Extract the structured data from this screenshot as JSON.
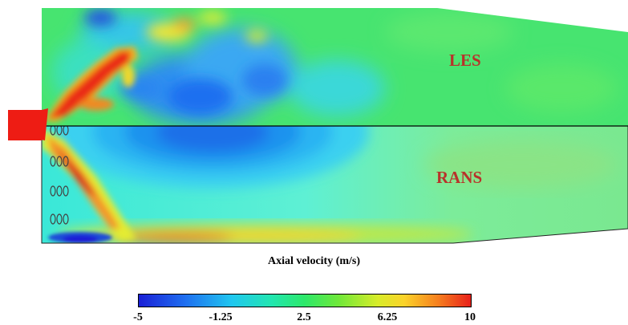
{
  "panels": {
    "les_label": "LES",
    "rans_label": "RANS"
  },
  "colorbar": {
    "title": "Axial velocity (m/s)",
    "min": -5,
    "max": 10,
    "ticks": [
      "-5",
      "-1.25",
      "2.5",
      "6.25",
      "10"
    ],
    "colors": [
      "#1a1fd6",
      "#1f6ff0",
      "#20c7f0",
      "#22e6b0",
      "#2de86a",
      "#6ee83a",
      "#d8ec2a",
      "#fbd32a",
      "#f6801e",
      "#e8201a"
    ]
  }
}
